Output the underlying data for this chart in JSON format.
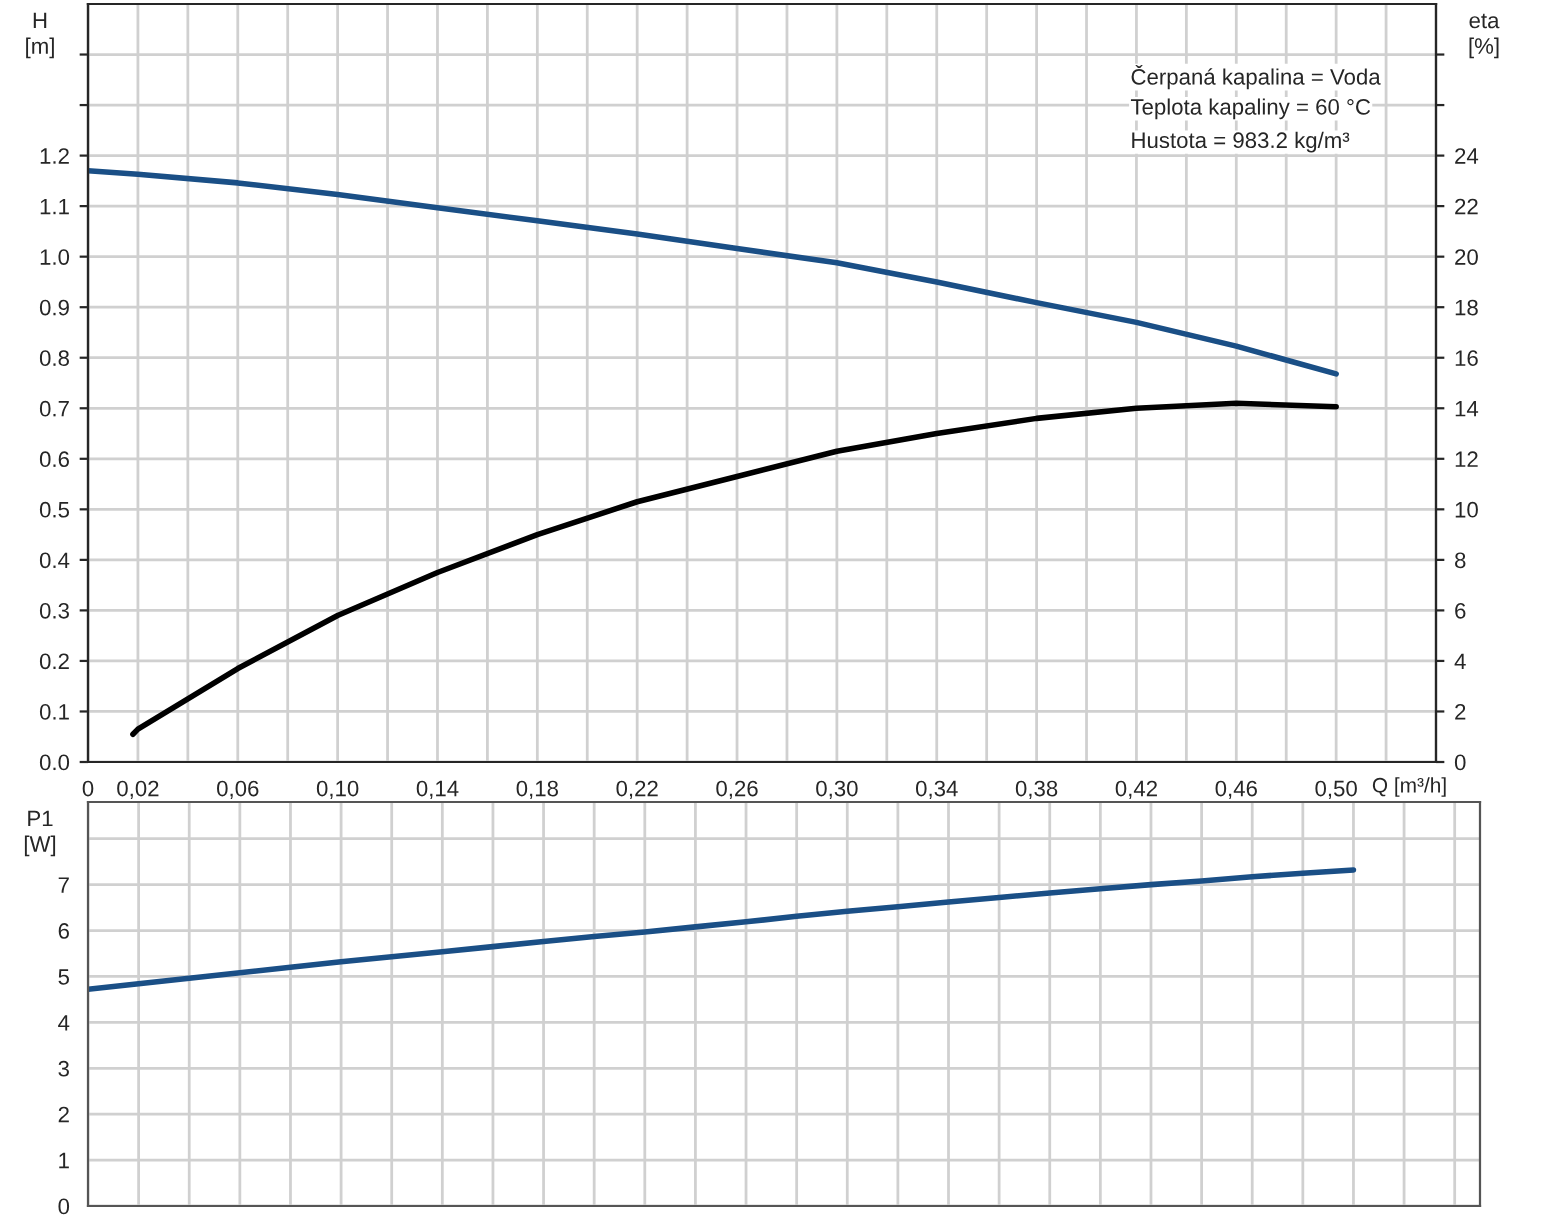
{
  "chart_data": [
    {
      "type": "line",
      "ylabel": "H\n[m]",
      "y2label": "eta\n[%]",
      "xlabel": "Q [m³/h]",
      "annotations": [
        "Čerpaná kapalina = Voda",
        "Teplota kapaliny = 60 °C",
        "Hustota = 983.2 kg/m³"
      ],
      "xlim": [
        0,
        0.54
      ],
      "xticks": [
        {
          "value": 0,
          "label": "0"
        },
        {
          "value": 0.02,
          "label": "0,02"
        },
        {
          "value": 0.04,
          "label": null
        },
        {
          "value": 0.06,
          "label": "0,06"
        },
        {
          "value": 0.08,
          "label": null
        },
        {
          "value": 0.1,
          "label": "0,10"
        },
        {
          "value": 0.12,
          "label": null
        },
        {
          "value": 0.14,
          "label": "0,14"
        },
        {
          "value": 0.16,
          "label": null
        },
        {
          "value": 0.18,
          "label": "0,18"
        },
        {
          "value": 0.2,
          "label": null
        },
        {
          "value": 0.22,
          "label": "0,22"
        },
        {
          "value": 0.24,
          "label": null
        },
        {
          "value": 0.26,
          "label": "0,26"
        },
        {
          "value": 0.28,
          "label": null
        },
        {
          "value": 0.3,
          "label": "0,30"
        },
        {
          "value": 0.32,
          "label": null
        },
        {
          "value": 0.34,
          "label": "0,34"
        },
        {
          "value": 0.36,
          "label": null
        },
        {
          "value": 0.38,
          "label": "0,38"
        },
        {
          "value": 0.4,
          "label": null
        },
        {
          "value": 0.42,
          "label": "0,42"
        },
        {
          "value": 0.44,
          "label": null
        },
        {
          "value": 0.46,
          "label": "0,46"
        },
        {
          "value": 0.48,
          "label": null
        },
        {
          "value": 0.5,
          "label": "0,50"
        },
        {
          "value": 0.52,
          "label": null
        }
      ],
      "ylim": [
        0,
        1.5
      ],
      "yticks": [
        {
          "value": 0,
          "label": "0.0"
        },
        0.1,
        0.2,
        0.3,
        0.4,
        0.5,
        0.6,
        0.7,
        0.8,
        0.9,
        {
          "value": 1.0,
          "label": "1.0"
        },
        1.1,
        1.2,
        {
          "value": 1.3,
          "label": null
        },
        {
          "value": 1.4,
          "label": null
        }
      ],
      "y2lim": [
        0,
        30
      ],
      "y2ticks": [
        0,
        2,
        4,
        6,
        8,
        10,
        12,
        14,
        16,
        18,
        20,
        22,
        24,
        {
          "value": 26,
          "label": null
        },
        {
          "value": 28,
          "label": null
        }
      ],
      "grid": true,
      "legend": false,
      "line_style": "solid",
      "marker": "none",
      "series": [
        {
          "color": "#1a4f86",
          "x": [
            0,
            0.02,
            0.06,
            0.1,
            0.14,
            0.18,
            0.22,
            0.26,
            0.3,
            0.34,
            0.38,
            0.42,
            0.46,
            0.5
          ],
          "values": [
            1.17,
            1.163,
            1.146,
            1.123,
            1.097,
            1.071,
            1.045,
            1.016,
            0.988,
            0.95,
            0.909,
            0.87,
            0.823,
            0.768
          ]
        },
        {
          "color": "#000000",
          "axis": "y2",
          "x": [
            0.018,
            0.02,
            0.06,
            0.1,
            0.14,
            0.18,
            0.22,
            0.26,
            0.3,
            0.34,
            0.38,
            0.42,
            0.46,
            0.5
          ],
          "values": [
            1.1,
            1.3,
            3.7,
            5.8,
            7.5,
            9.0,
            10.3,
            11.3,
            12.3,
            13.0,
            13.6,
            14.0,
            14.2,
            14.06
          ]
        }
      ]
    },
    {
      "type": "line",
      "ylabel": "P1\n[W]",
      "categories": [
        null,
        null,
        null,
        null,
        null,
        null,
        null,
        null,
        null,
        null,
        null,
        null,
        null,
        null,
        null,
        null,
        null,
        null,
        null,
        null,
        null,
        null,
        null,
        null,
        null,
        null,
        null,
        null
      ],
      "ylim": [
        0,
        8.8
      ],
      "yticks": [
        0,
        1,
        2,
        3,
        4,
        5,
        6,
        7,
        {
          "value": 8,
          "label": null
        }
      ],
      "tick_labels": "y",
      "grid": true,
      "legend": false,
      "line_style": "solid",
      "marker": "none",
      "series": [
        {
          "color": "#1a4f86",
          "values": [
            4.72,
            4.84,
            4.96,
            5.08,
            5.2,
            5.32,
            5.43,
            5.54,
            5.65,
            5.76,
            5.87,
            5.97,
            6.08,
            6.19,
            6.31,
            6.42,
            6.52,
            6.62,
            6.72,
            6.82,
            6.91,
            7.0,
            7.08,
            7.17,
            7.25,
            7.32,
            null,
            null
          ]
        }
      ]
    }
  ]
}
